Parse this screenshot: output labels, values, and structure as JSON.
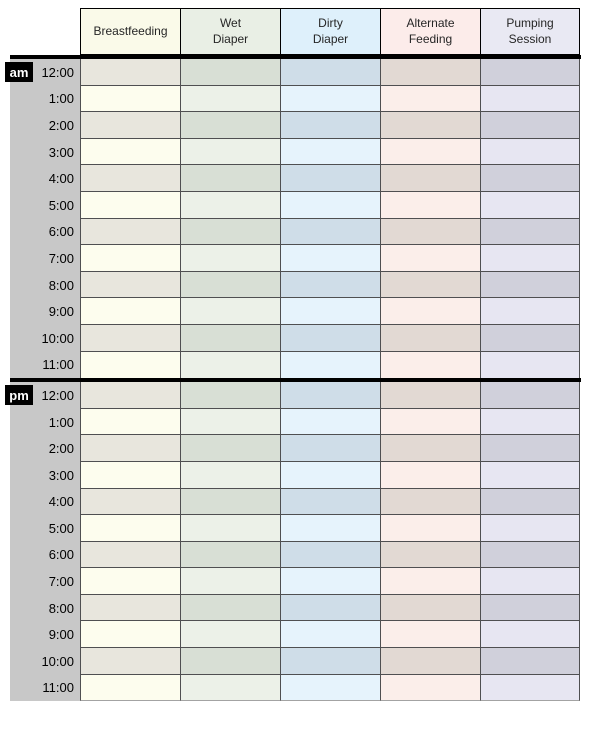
{
  "sheet": {
    "title": "hourly-baby-care-tracking-sheet",
    "background": "#ffffff",
    "gutter_bg": "#c8c8c8",
    "grid_line_color": "#4f4f51",
    "header_border_color": "#000000",
    "section_divider_color": "#000000",
    "bottom_edge_color": "#a3a3a3",
    "badge_bg": "#000000",
    "badge_text_color": "#ffffff"
  },
  "columns": [
    {
      "id": "breastfeeding",
      "label": "Breastfeeding",
      "label_lines": [
        "Breastfeeding"
      ],
      "header_bg": "#fafae9",
      "row_light_bg": "#fdfdee",
      "row_dark_bg": "#e8e6dd"
    },
    {
      "id": "wet-diaper",
      "label": "Wet Diaper",
      "label_lines": [
        "Wet",
        "Diaper"
      ],
      "header_bg": "#e9efe5",
      "row_light_bg": "#ecf1e8",
      "row_dark_bg": "#d8dfd5"
    },
    {
      "id": "dirty-diaper",
      "label": "Dirty Diaper",
      "label_lines": [
        "Dirty",
        "Diaper"
      ],
      "header_bg": "#def0fb",
      "row_light_bg": "#e6f3fc",
      "row_dark_bg": "#cfdde8"
    },
    {
      "id": "alternate-feeding",
      "label": "Alternate Feeding",
      "label_lines": [
        "Alternate",
        "Feeding"
      ],
      "header_bg": "#fcecea",
      "row_light_bg": "#fbeeea",
      "row_dark_bg": "#e2d9d3"
    },
    {
      "id": "pumping-session",
      "label": "Pumping Session",
      "label_lines": [
        "Pumping",
        "Session"
      ],
      "header_bg": "#e9e9f3",
      "row_light_bg": "#e7e6f2",
      "row_dark_bg": "#d0d0db"
    }
  ],
  "sections": [
    {
      "id": "am",
      "label": "am",
      "times": [
        "12:00",
        "1:00",
        "2:00",
        "3:00",
        "4:00",
        "5:00",
        "6:00",
        "7:00",
        "8:00",
        "9:00",
        "10:00",
        "11:00"
      ]
    },
    {
      "id": "pm",
      "label": "pm",
      "times": [
        "12:00",
        "1:00",
        "2:00",
        "3:00",
        "4:00",
        "5:00",
        "6:00",
        "7:00",
        "8:00",
        "9:00",
        "10:00",
        "11:00"
      ]
    }
  ]
}
